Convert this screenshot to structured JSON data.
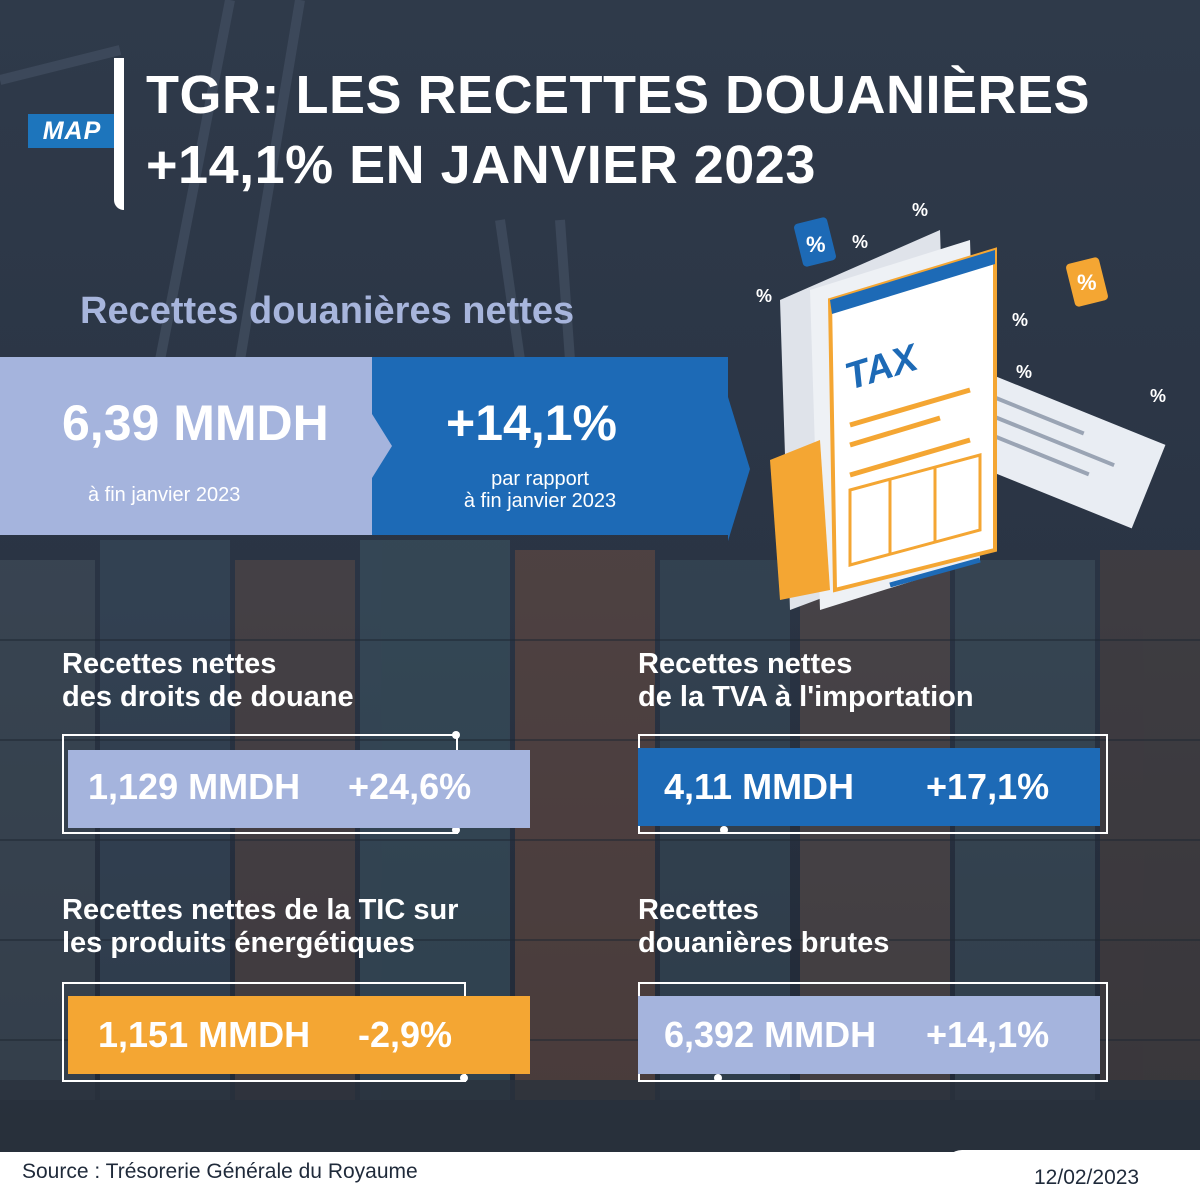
{
  "brand": {
    "logo_text": "MAP",
    "accent": "#1d75bc"
  },
  "title": {
    "line1": "TGR: LES RECETTES DOUANIÈRES",
    "line2": "+14,1% EN JANVIER 2023"
  },
  "hero": {
    "heading": "Recettes douanières nettes",
    "value": "6,39 MMDH",
    "value_caption": "à fin janvier 2023",
    "change": "+14,1%",
    "change_caption_line1": "par rapport",
    "change_caption_line2": "à fin janvier 2023",
    "colors": {
      "left": "#a5b4dd",
      "right": "#1d6ab6"
    }
  },
  "illustration": {
    "icon": "tax-document-icon",
    "form_label": "TAX",
    "percent_symbol": "%"
  },
  "cards": [
    {
      "title_line1": "Recettes nettes",
      "title_line2": "des droits de douane",
      "value": "1,129 MMDH",
      "change": "+24,6%",
      "color": "#a5b4dd"
    },
    {
      "title_line1": "Recettes nettes",
      "title_line2": "de la TVA à l'importation",
      "value": "4,11 MMDH",
      "change": "+17,1%",
      "color": "#1d6ab6"
    },
    {
      "title_line1": "Recettes nettes de la TIC sur",
      "title_line2": "les produits énergétiques",
      "value": "1,151 MMDH",
      "change": "-2,9%",
      "color": "#f4a633"
    },
    {
      "title_line1": "Recettes",
      "title_line2": "douanières brutes",
      "value": "6,392 MMDH",
      "change": "+14,1%",
      "color": "#a5b4dd"
    }
  ],
  "footer": {
    "source": "Source : Trésorerie Générale du Royaume",
    "date": "12/02/2023"
  }
}
